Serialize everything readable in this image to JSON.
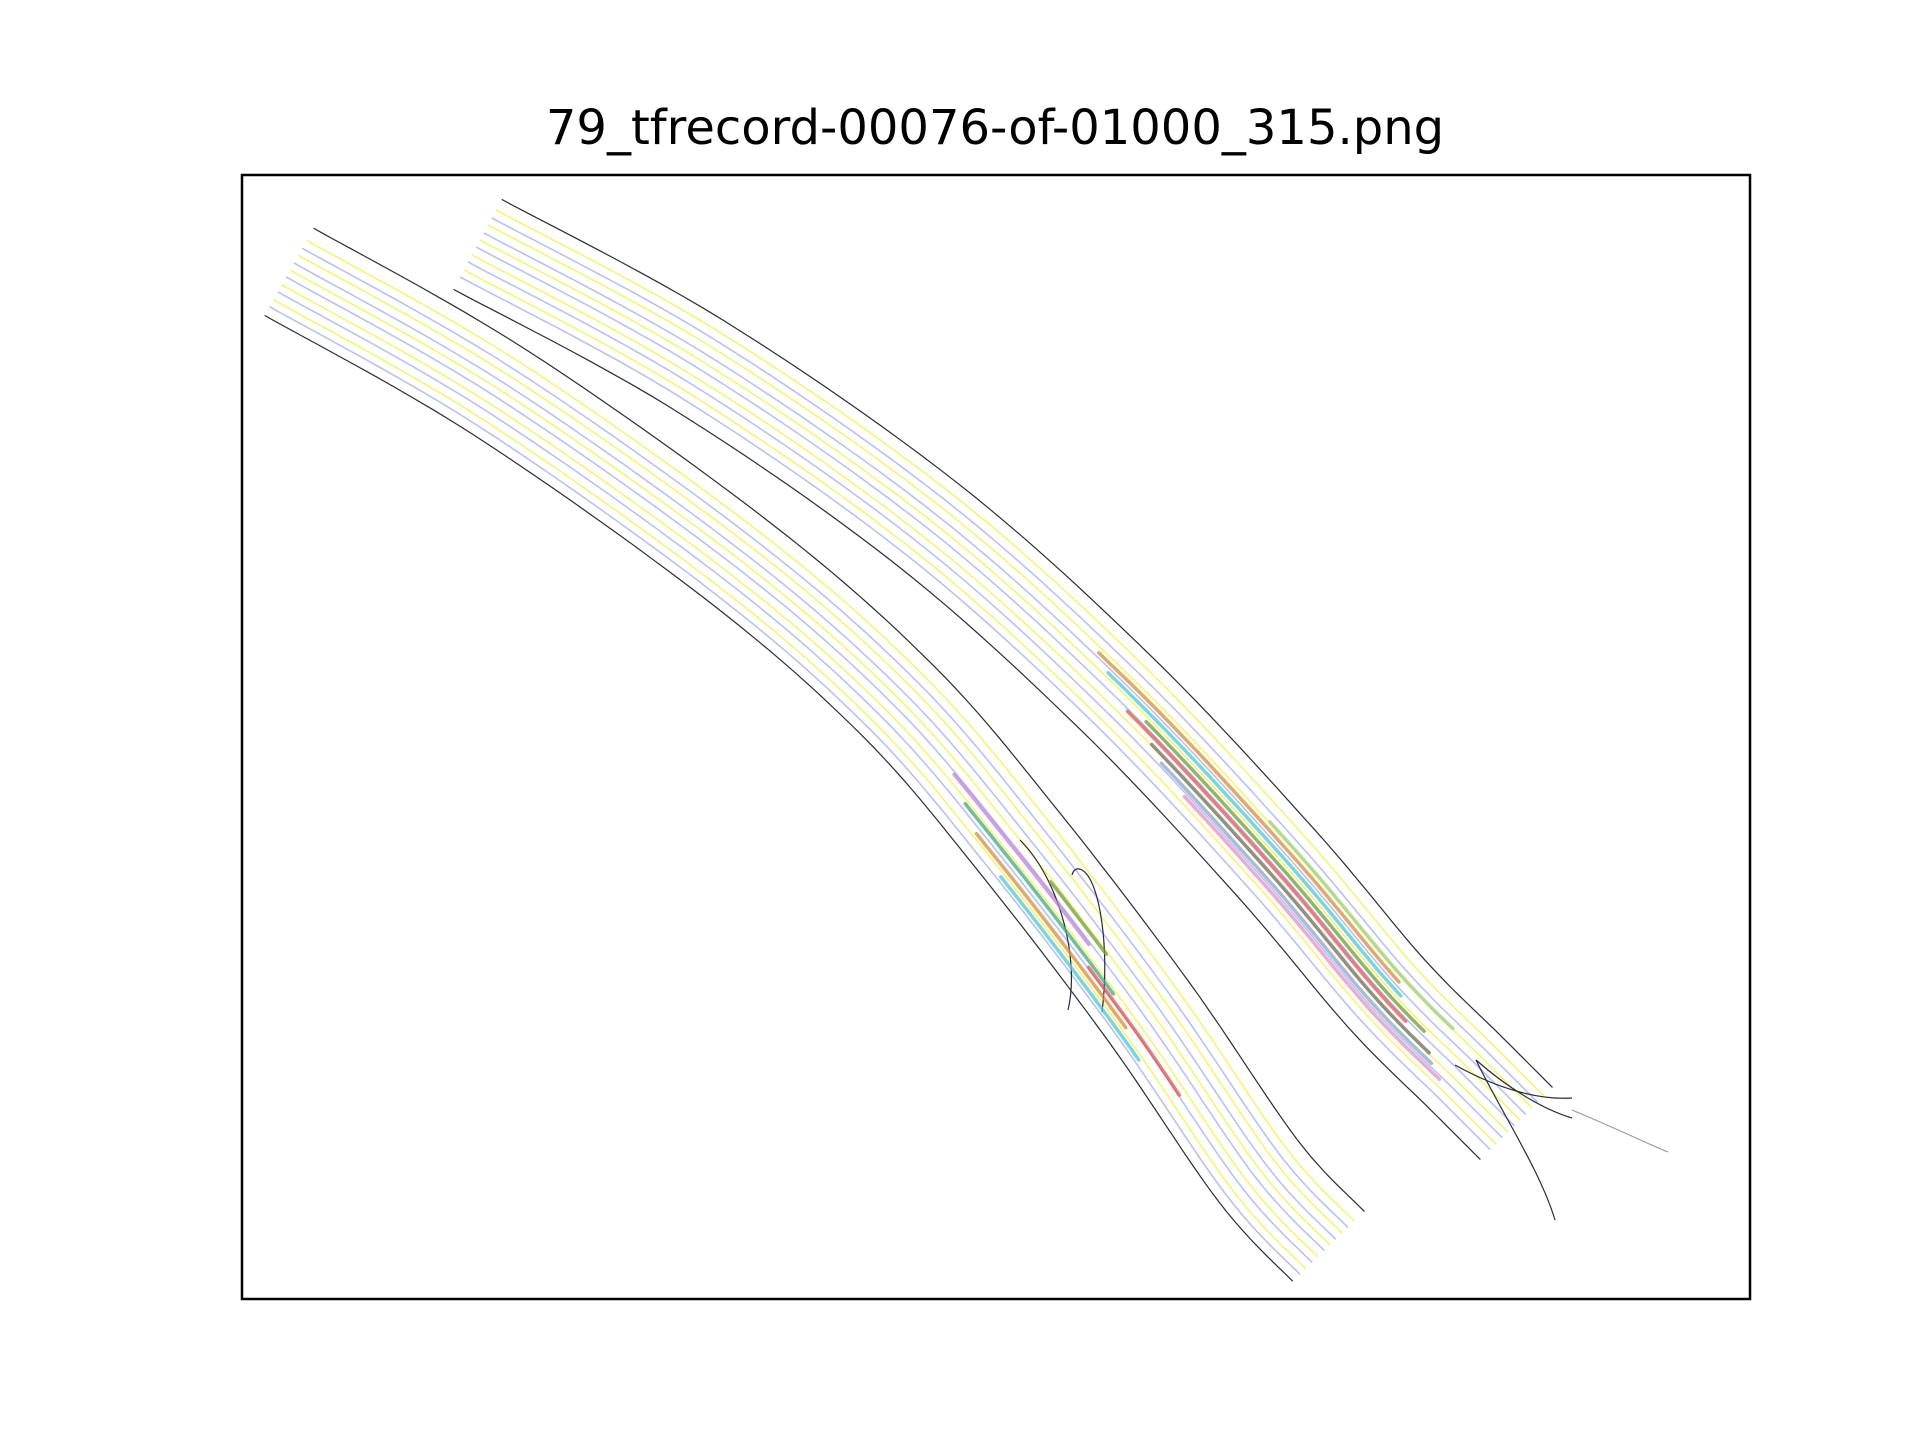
{
  "figure": {
    "title": "79_tfrecord-00076-of-01000_315.png"
  },
  "colors": {
    "road_edge": "#2a2a3a",
    "lane_line_yellow": "#f5f56e",
    "lane_line_blue": "#b7c3ee",
    "extension_line": "#9a9a9a",
    "frame": "#000000",
    "trajectory_palette": [
      "#d98b3a",
      "#4fc6da",
      "#6b9e3c",
      "#e0544f",
      "#6e6e6e",
      "#8fa3c8",
      "#e58fbf",
      "#9fcf7a",
      "#c47dd1",
      "#3fa58b"
    ]
  },
  "axes": {
    "ticks": false,
    "grid": false
  }
}
